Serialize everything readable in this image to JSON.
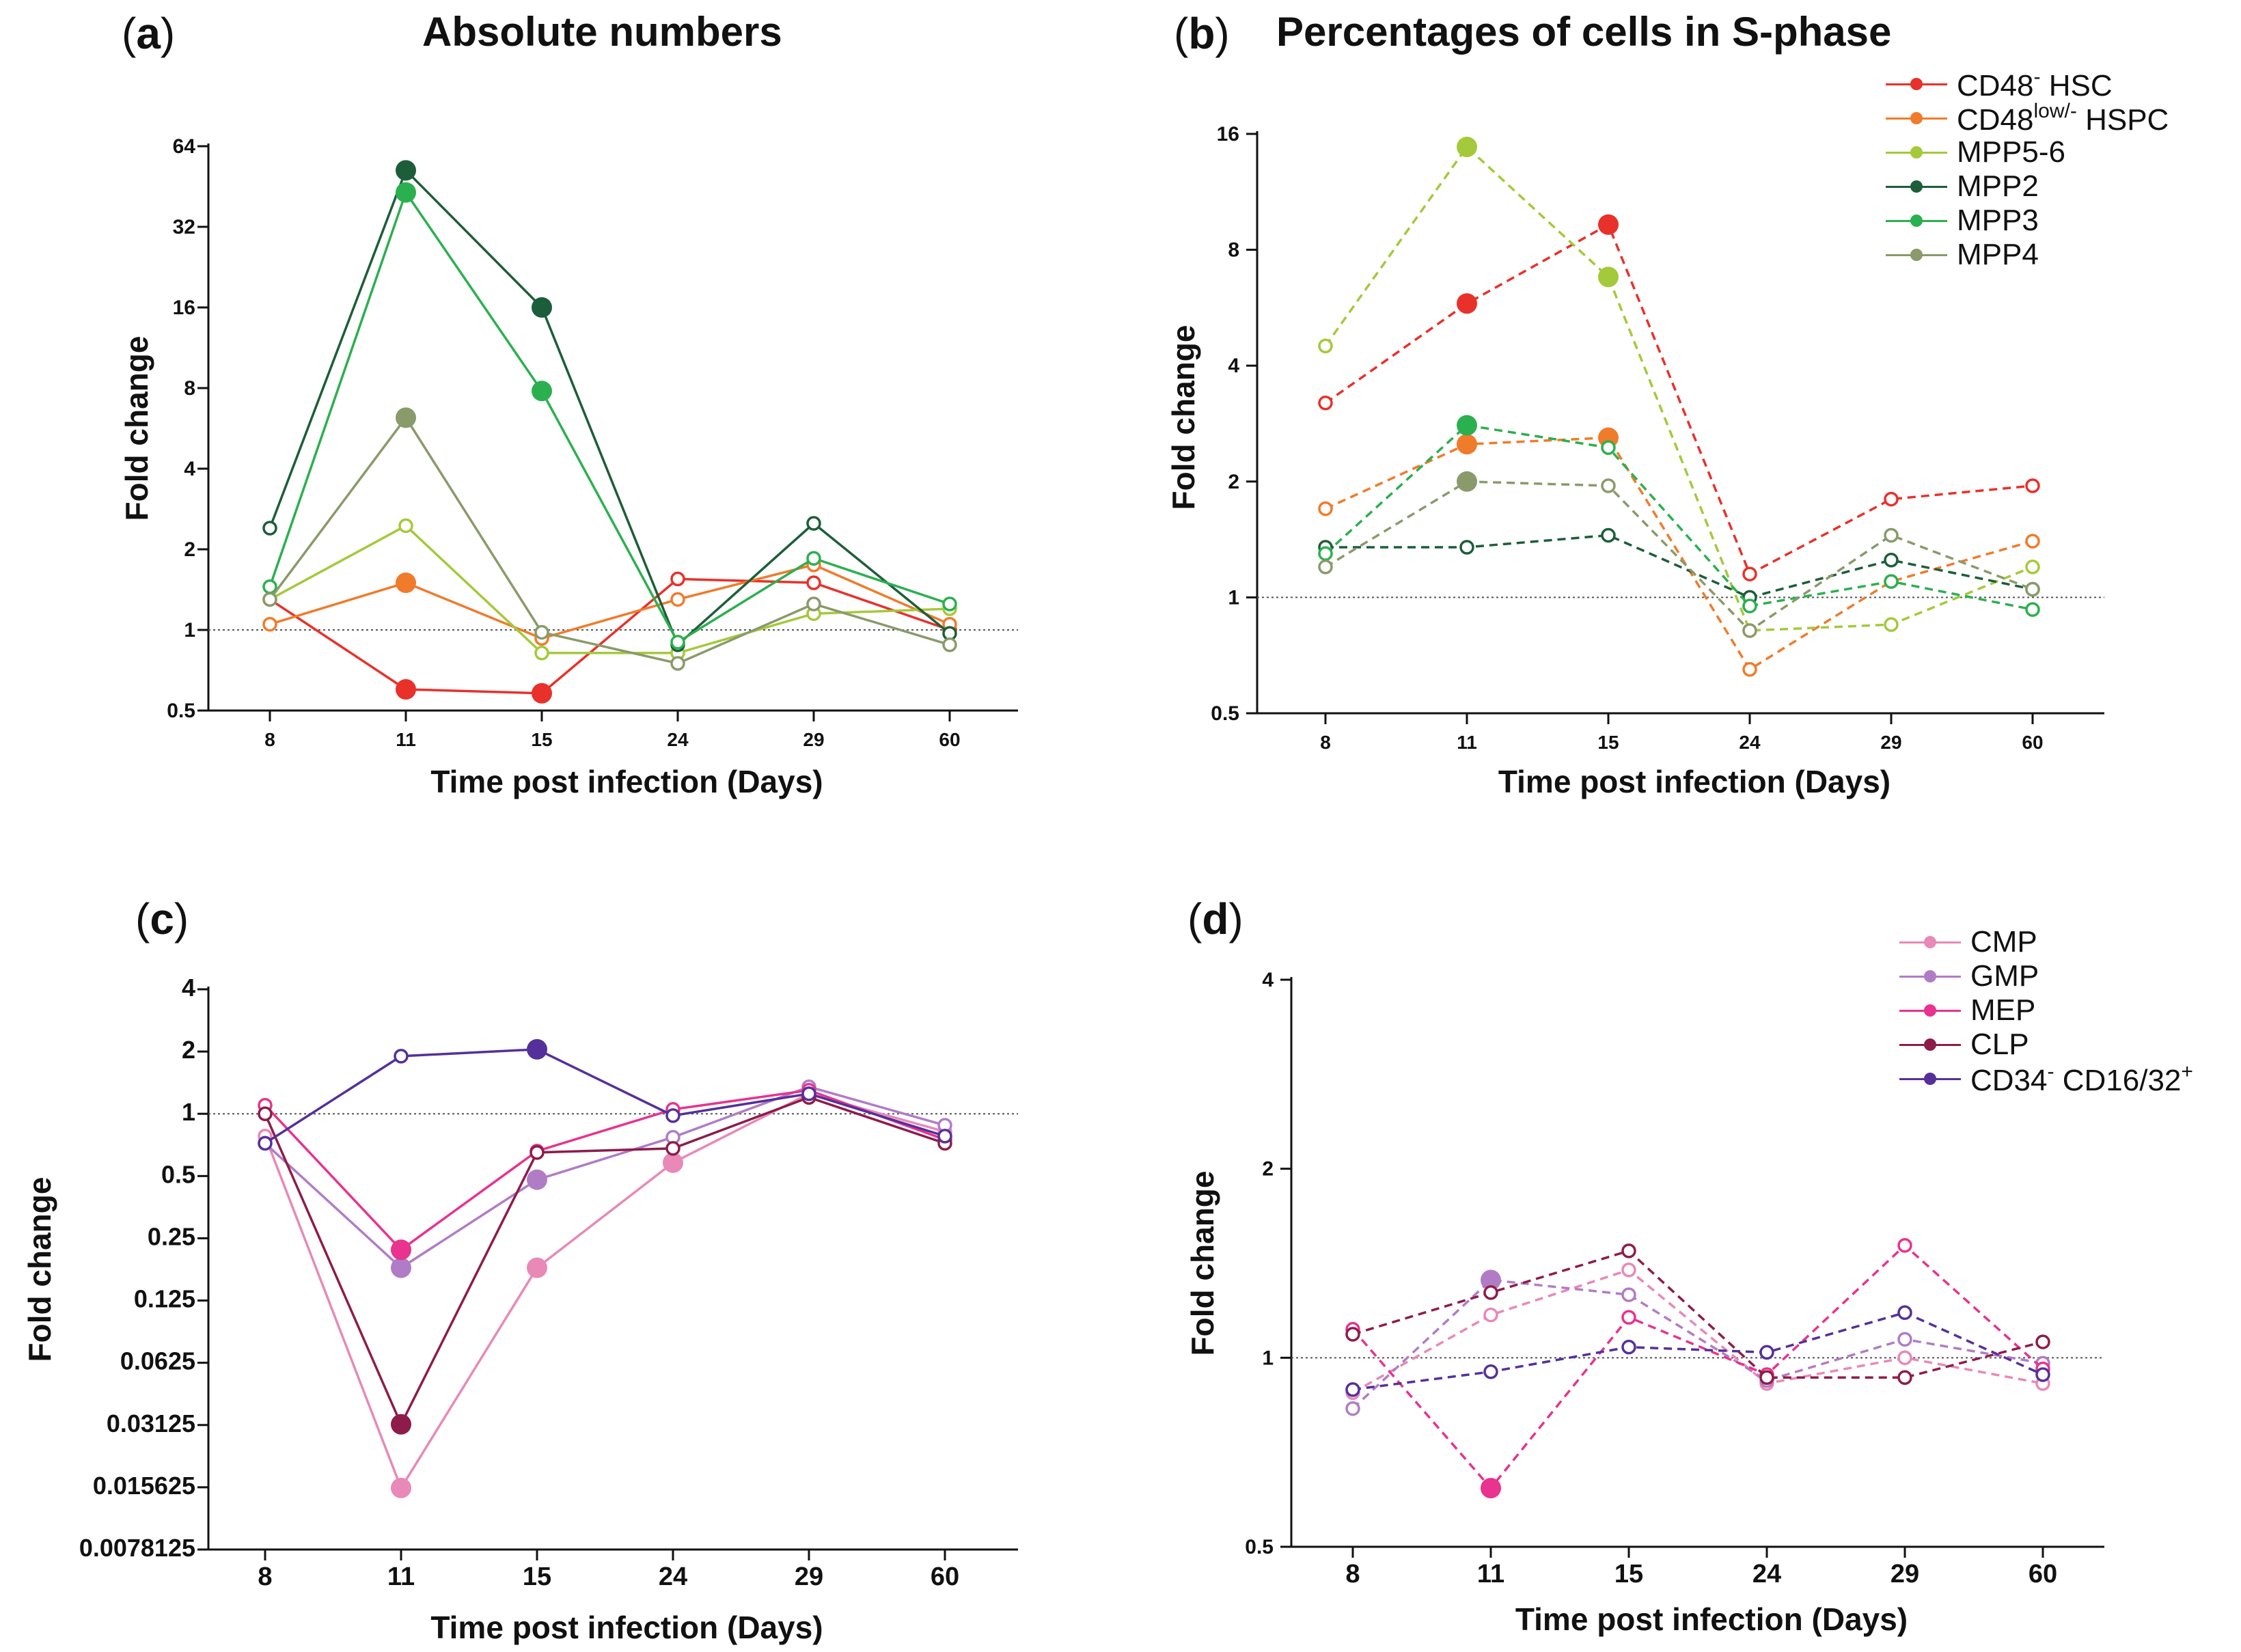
{
  "panel_labels": {
    "a": "a",
    "b": "b",
    "c": "c",
    "d": "d"
  },
  "chart_data": [
    {
      "id": "a",
      "type": "line",
      "title": "Absolute numbers",
      "xlabel": "Time post infection (Days)",
      "ylabel": "Fold change",
      "yscale": "log2",
      "categories": [
        "8",
        "11",
        "15",
        "24",
        "29",
        "60"
      ],
      "ylim": [
        0.5,
        64
      ],
      "yticks": [
        0.5,
        1,
        2,
        4,
        8,
        16,
        32,
        64
      ],
      "ytick_labels": [
        "0.5",
        "1",
        "2",
        "4",
        "8",
        "16",
        "32",
        "64"
      ],
      "reference_line": 1,
      "line_style": "solid",
      "series": [
        {
          "name": "CD48- HSC",
          "color": "#e8312a",
          "values": [
            1.3,
            0.6,
            0.58,
            1.55,
            1.5,
            1.0
          ],
          "filled": [
            false,
            true,
            true,
            false,
            false,
            false
          ]
        },
        {
          "name": "CD48low/- HSPC",
          "color": "#f07b2a",
          "values": [
            1.05,
            1.5,
            0.93,
            1.3,
            1.75,
            1.05
          ],
          "filled": [
            false,
            true,
            false,
            false,
            false,
            false
          ]
        },
        {
          "name": "MPP5-6",
          "color": "#a4c93a",
          "values": [
            1.3,
            2.45,
            0.82,
            0.82,
            1.15,
            1.2
          ],
          "filled": [
            false,
            false,
            false,
            false,
            false,
            false
          ]
        },
        {
          "name": "MPP2",
          "color": "#1c5e3a",
          "values": [
            2.4,
            52,
            16,
            0.88,
            2.5,
            0.97
          ],
          "filled": [
            false,
            true,
            true,
            false,
            false,
            false
          ]
        },
        {
          "name": "MPP3",
          "color": "#2bb04f",
          "values": [
            1.45,
            43,
            7.8,
            0.9,
            1.85,
            1.25
          ],
          "filled": [
            false,
            true,
            true,
            false,
            false,
            false
          ]
        },
        {
          "name": "MPP4",
          "color": "#8a9a6a",
          "values": [
            1.3,
            6.2,
            0.98,
            0.75,
            1.25,
            0.88
          ],
          "filled": [
            false,
            true,
            false,
            false,
            false,
            false
          ]
        }
      ]
    },
    {
      "id": "b",
      "type": "line",
      "title": "Percentages of cells in S-phase",
      "xlabel": "Time post infection (Days)",
      "ylabel": "Fold change",
      "yscale": "log2",
      "categories": [
        "8",
        "11",
        "15",
        "24",
        "29",
        "60"
      ],
      "ylim": [
        0.5,
        16
      ],
      "yticks": [
        0.5,
        1,
        2,
        4,
        8,
        16
      ],
      "ytick_labels": [
        "0.5",
        "1",
        "2",
        "4",
        "8",
        "16"
      ],
      "reference_line": 1,
      "line_style": "dashed",
      "series": [
        {
          "name": "CD48- HSC",
          "color": "#e8312a",
          "values": [
            3.2,
            5.8,
            9.3,
            1.15,
            1.8,
            1.95
          ],
          "filled": [
            false,
            true,
            true,
            false,
            false,
            false
          ]
        },
        {
          "name": "CD48low/- HSPC",
          "color": "#f07b2a",
          "values": [
            1.7,
            2.5,
            2.6,
            0.65,
            1.1,
            1.4
          ],
          "filled": [
            false,
            true,
            true,
            false,
            false,
            false
          ]
        },
        {
          "name": "MPP5-6",
          "color": "#a4c93a",
          "values": [
            4.5,
            14.8,
            6.8,
            0.82,
            0.85,
            1.2
          ],
          "filled": [
            false,
            true,
            true,
            false,
            false,
            false
          ]
        },
        {
          "name": "MPP2",
          "color": "#1c5e3a",
          "values": [
            1.35,
            1.35,
            1.45,
            1.0,
            1.25,
            1.05
          ],
          "filled": [
            false,
            false,
            false,
            false,
            false,
            false
          ]
        },
        {
          "name": "MPP3",
          "color": "#2bb04f",
          "values": [
            1.3,
            2.8,
            2.45,
            0.95,
            1.1,
            0.93
          ],
          "filled": [
            false,
            true,
            false,
            false,
            false,
            false
          ]
        },
        {
          "name": "MPP4",
          "color": "#8a9a6a",
          "values": [
            1.2,
            2.0,
            1.95,
            0.82,
            1.45,
            1.05
          ],
          "filled": [
            false,
            true,
            false,
            false,
            false,
            false
          ]
        }
      ]
    },
    {
      "id": "c",
      "type": "line",
      "title": "",
      "xlabel": "Time post infection (Days)",
      "ylabel": "Fold change",
      "yscale": "log2",
      "categories": [
        "8",
        "11",
        "15",
        "24",
        "29",
        "60"
      ],
      "ylim": [
        0.0078125,
        4
      ],
      "yticks": [
        0.0078125,
        0.015625,
        0.03125,
        0.0625,
        0.125,
        0.25,
        0.5,
        1,
        2,
        4
      ],
      "ytick_labels": [
        "0.0078125",
        "0.015625",
        "0.03125",
        "0.0625",
        "0.125",
        "0.25",
        "0.5",
        "1",
        "2",
        "4"
      ],
      "reference_line": 1,
      "line_style": "solid",
      "series": [
        {
          "name": "CMP",
          "color": "#e889b8",
          "values": [
            0.78,
            0.0155,
            0.18,
            0.58,
            1.25,
            0.82
          ],
          "filled": [
            false,
            true,
            true,
            true,
            false,
            false
          ]
        },
        {
          "name": "GMP",
          "color": "#b17cc6",
          "values": [
            0.72,
            0.18,
            0.48,
            0.77,
            1.35,
            0.88
          ],
          "filled": [
            false,
            true,
            true,
            false,
            false,
            false
          ]
        },
        {
          "name": "MEP",
          "color": "#e8338f",
          "values": [
            1.1,
            0.22,
            0.66,
            1.05,
            1.3,
            0.75
          ],
          "filled": [
            false,
            true,
            false,
            false,
            false,
            false
          ]
        },
        {
          "name": "CLP",
          "color": "#8e1c4a",
          "values": [
            1.0,
            0.0315,
            0.65,
            0.68,
            1.2,
            0.72
          ],
          "filled": [
            false,
            true,
            false,
            false,
            false,
            false
          ]
        },
        {
          "name": "CD34- CD16/32+",
          "color": "#55309a",
          "values": [
            0.72,
            1.9,
            2.05,
            0.98,
            1.25,
            0.78
          ],
          "filled": [
            false,
            false,
            true,
            false,
            false,
            false
          ]
        }
      ]
    },
    {
      "id": "d",
      "type": "line",
      "title": "",
      "xlabel": "Time post infection (Days)",
      "ylabel": "Fold change",
      "yscale": "log2",
      "categories": [
        "8",
        "11",
        "15",
        "24",
        "29",
        "60"
      ],
      "ylim": [
        0.5,
        4
      ],
      "yticks": [
        0.5,
        1,
        2,
        4
      ],
      "ytick_labels": [
        "0.5",
        "1",
        "2",
        "4"
      ],
      "reference_line": 1,
      "line_style": "dashed",
      "series": [
        {
          "name": "CMP",
          "color": "#e889b8",
          "values": [
            0.88,
            1.17,
            1.38,
            0.91,
            1.0,
            0.91
          ],
          "filled": [
            false,
            false,
            false,
            false,
            false,
            false
          ]
        },
        {
          "name": "GMP",
          "color": "#b17cc6",
          "values": [
            0.83,
            1.33,
            1.26,
            0.92,
            1.07,
            0.98
          ],
          "filled": [
            false,
            true,
            false,
            false,
            false,
            false
          ]
        },
        {
          "name": "MEP",
          "color": "#e8338f",
          "values": [
            1.11,
            0.62,
            1.16,
            0.94,
            1.51,
            0.96
          ],
          "filled": [
            false,
            true,
            false,
            false,
            false,
            false
          ]
        },
        {
          "name": "CLP",
          "color": "#8e1c4a",
          "values": [
            1.09,
            1.27,
            1.48,
            0.93,
            0.93,
            1.06
          ],
          "filled": [
            false,
            false,
            false,
            false,
            false,
            false
          ]
        },
        {
          "name": "CD34- CD16/32+",
          "color": "#55309a",
          "values": [
            0.89,
            0.95,
            1.04,
            1.02,
            1.18,
            0.94
          ],
          "filled": [
            false,
            false,
            false,
            false,
            false,
            false
          ]
        }
      ]
    }
  ],
  "legend_top": [
    {
      "name": "CD48",
      "sup": "-",
      "suffix": " HSC",
      "color": "#e8312a"
    },
    {
      "name": "CD48",
      "sup": "low/-",
      "suffix": " HSPC",
      "color": "#f07b2a"
    },
    {
      "name": "MPP5-6",
      "sup": "",
      "suffix": "",
      "color": "#a4c93a"
    },
    {
      "name": "MPP2",
      "sup": "",
      "suffix": "",
      "color": "#1c5e3a"
    },
    {
      "name": "MPP3",
      "sup": "",
      "suffix": "",
      "color": "#2bb04f"
    },
    {
      "name": "MPP4",
      "sup": "",
      "suffix": "",
      "color": "#8a9a6a"
    }
  ],
  "legend_bottom": [
    {
      "name": "CMP",
      "sup": "",
      "suffix": "",
      "sup2": "",
      "color": "#e889b8"
    },
    {
      "name": "GMP",
      "sup": "",
      "suffix": "",
      "sup2": "",
      "color": "#b17cc6"
    },
    {
      "name": "MEP",
      "sup": "",
      "suffix": "",
      "sup2": "",
      "color": "#e8338f"
    },
    {
      "name": "CLP",
      "sup": "",
      "suffix": "",
      "sup2": "",
      "color": "#8e1c4a"
    },
    {
      "name": "CD34",
      "sup": "-",
      "suffix": " CD16/32",
      "sup2": "+",
      "color": "#55309a"
    }
  ]
}
